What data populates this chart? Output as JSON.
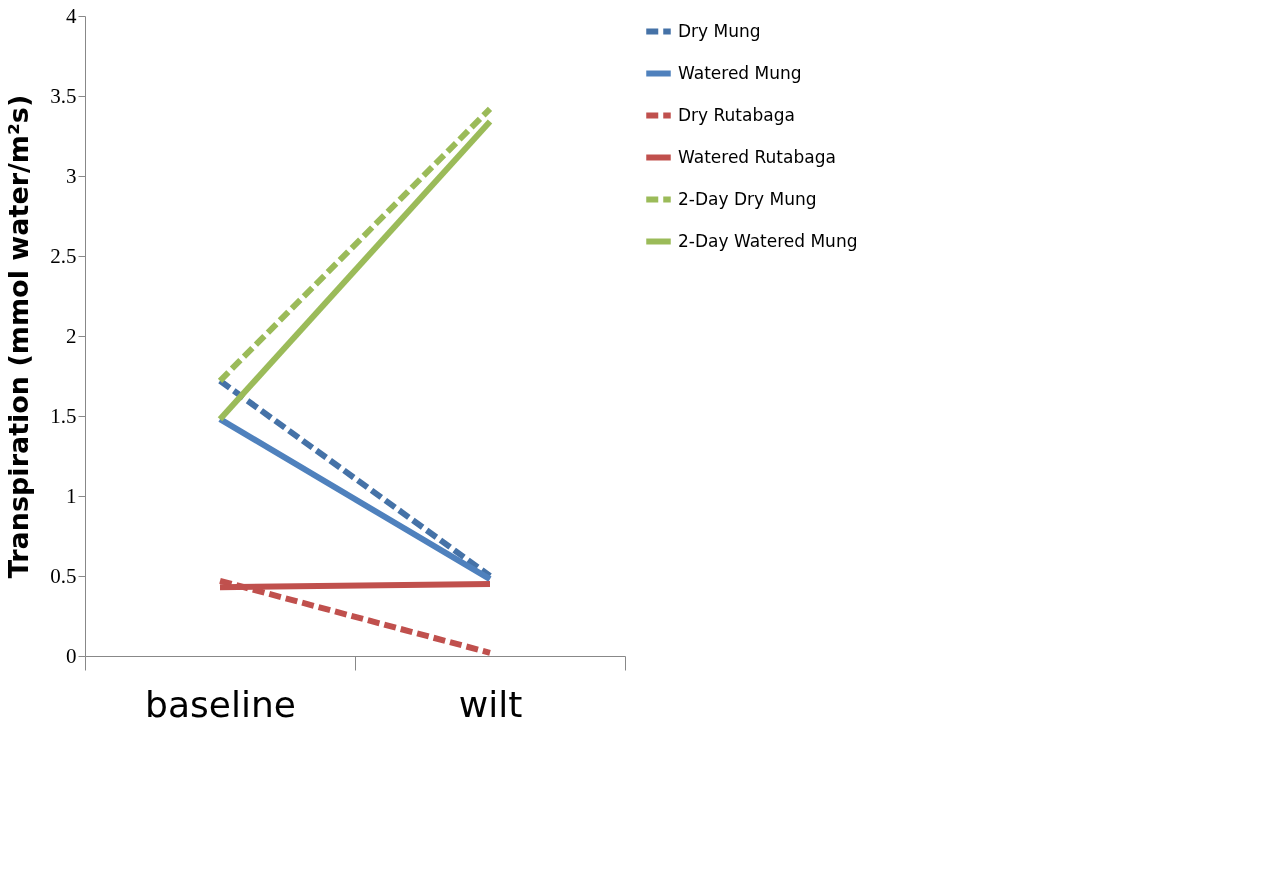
{
  "chart_data": {
    "type": "line",
    "ylabel": "Transpiration (mmol water/m²s)",
    "categories": [
      "baseline",
      "wilt"
    ],
    "ylim": [
      0,
      4
    ],
    "yticks": [
      0,
      0.5,
      1,
      1.5,
      2,
      2.5,
      3,
      3.5,
      4
    ],
    "legend": "right",
    "series": [
      {
        "name": "Dry Mung",
        "color": "#4572a7",
        "line_style": "dashed",
        "values": [
          1.72,
          0.5
        ]
      },
      {
        "name": "Watered Mung",
        "color": "#4f81bd",
        "line_style": "solid",
        "values": [
          1.48,
          0.48
        ]
      },
      {
        "name": "Dry Rutabaga",
        "color": "#c0504d",
        "line_style": "dashed",
        "values": [
          0.47,
          0.02
        ]
      },
      {
        "name": "Watered Rutabaga",
        "color": "#c0504d",
        "line_style": "solid",
        "values": [
          0.43,
          0.45
        ]
      },
      {
        "name": "2-Day Dry Mung",
        "color": "#9bbb59",
        "line_style": "dashed",
        "values": [
          1.72,
          3.42
        ]
      },
      {
        "name": "2-Day Watered Mung",
        "color": "#9bbb59",
        "line_style": "solid",
        "values": [
          1.48,
          3.34
        ]
      }
    ]
  }
}
